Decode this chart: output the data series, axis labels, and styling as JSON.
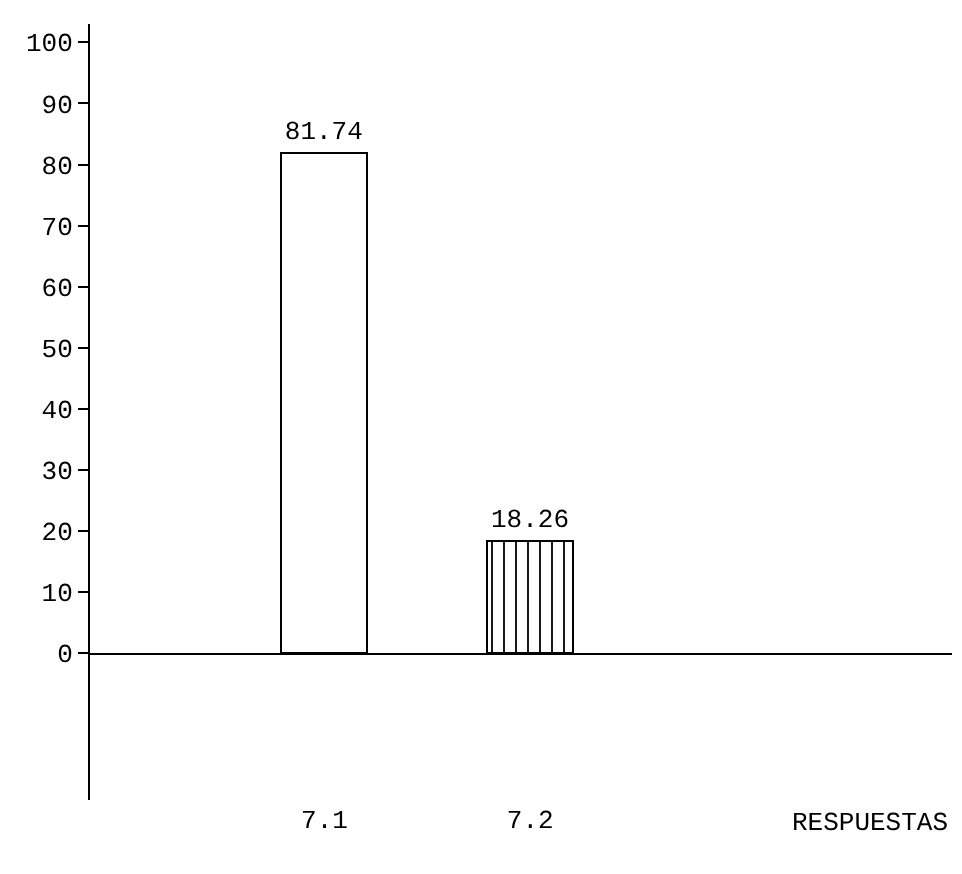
{
  "chart_data": {
    "type": "bar",
    "categories": [
      "7.1",
      "7.2"
    ],
    "values": [
      81.74,
      18.26
    ],
    "colors": [
      "#ffffff",
      "#000000"
    ],
    "annotations": [
      "RESPUESTAS"
    ],
    "ylim": [
      -24,
      103
    ],
    "yticks": [
      0,
      10,
      20,
      30,
      40,
      50,
      60,
      70,
      80,
      90,
      100
    ],
    "data_labels": true
  }
}
